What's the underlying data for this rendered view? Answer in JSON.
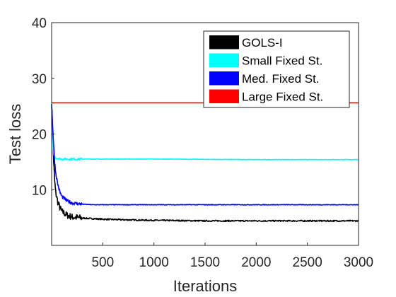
{
  "chart_data": {
    "type": "line",
    "title": "",
    "xlabel": "Iterations",
    "ylabel": "Test loss",
    "xlim": [
      0,
      3000
    ],
    "ylim": [
      0,
      40
    ],
    "xticks": [
      500,
      1000,
      1500,
      2000,
      2500,
      3000
    ],
    "yticks": [
      10,
      20,
      30,
      40
    ],
    "grid": false,
    "legend_position": "top-right",
    "series": [
      {
        "name": "GOLS-I",
        "color": "#000000",
        "x": [
          0,
          10,
          20,
          30,
          40,
          60,
          80,
          100,
          150,
          200,
          300,
          400,
          500,
          700,
          1000,
          1500,
          2000,
          2500,
          3000
        ],
        "y": [
          25.5,
          20,
          15,
          11.5,
          9.5,
          7.8,
          6.8,
          6.1,
          5.4,
          5.1,
          4.9,
          4.8,
          4.7,
          4.6,
          4.5,
          4.4,
          4.4,
          4.4,
          4.4
        ]
      },
      {
        "name": "Small Fixed St.",
        "color": "#00ffff",
        "x": [
          0,
          10,
          20,
          30,
          40,
          60,
          100,
          200,
          500,
          1000,
          2000,
          3000
        ],
        "y": [
          25.5,
          18.5,
          16.5,
          15.9,
          15.7,
          15.6,
          15.5,
          15.5,
          15.5,
          15.5,
          15.4,
          15.4
        ]
      },
      {
        "name": "Med. Fixed St.",
        "color": "#0000ff",
        "x": [
          0,
          10,
          20,
          30,
          40,
          60,
          80,
          100,
          150,
          200,
          300,
          400,
          500,
          1000,
          2000,
          3000
        ],
        "y": [
          25.5,
          21.5,
          18,
          15,
          13,
          11,
          9.6,
          8.8,
          8,
          7.6,
          7.4,
          7.3,
          7.3,
          7.3,
          7.3,
          7.3
        ]
      },
      {
        "name": "Large Fixed St.",
        "color": "#ff0000",
        "x": [
          0,
          3000
        ],
        "y": [
          25.6,
          25.6
        ]
      }
    ]
  }
}
